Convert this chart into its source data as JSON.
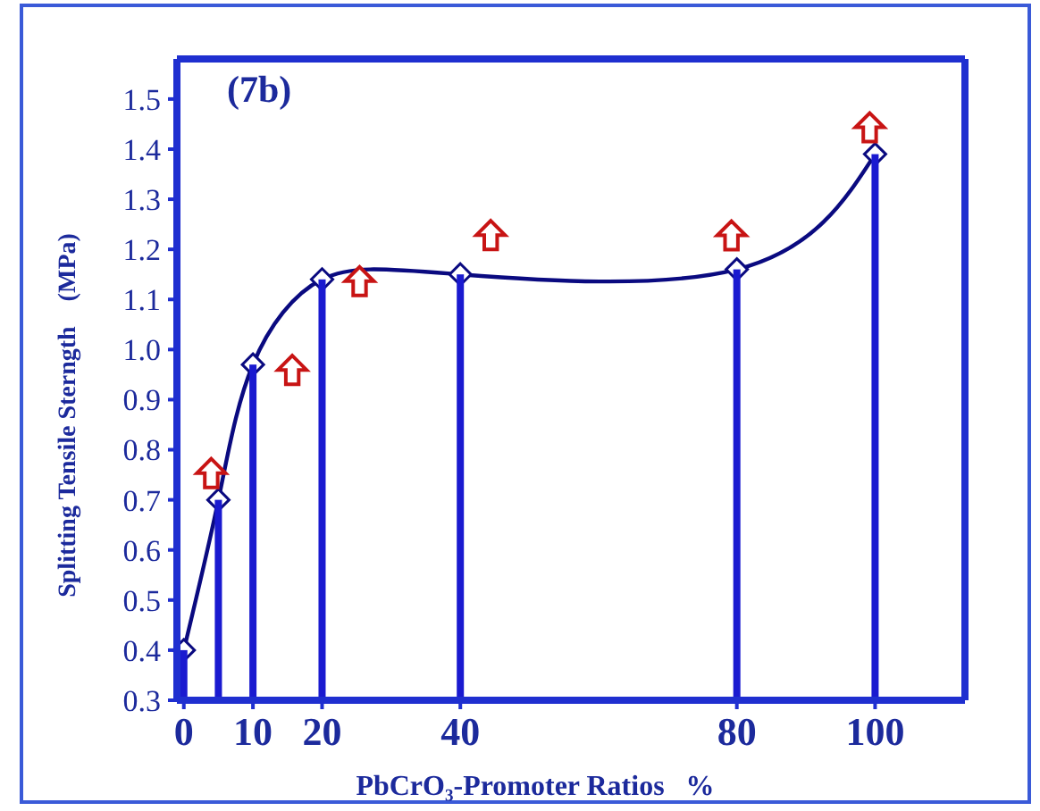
{
  "chart_data": {
    "type": "line",
    "title": "(7b)",
    "xlabel": "PbCrO₃-Promoter Ratios   %",
    "ylabel": "Splitting Tensile Sterngth    (MPa)",
    "x": [
      0,
      5,
      10,
      20,
      40,
      80,
      100
    ],
    "series": [
      {
        "type": "bar",
        "color": "#1a1ad0",
        "values": [
          0.4,
          0.7,
          0.97,
          1.14,
          1.15,
          1.16,
          1.39
        ]
      },
      {
        "color": "#0a0a80",
        "values": [
          0.4,
          0.7,
          0.97,
          1.14,
          1.15,
          1.16,
          1.39
        ]
      }
    ],
    "xlim": [
      -1,
      113
    ],
    "xticks": [
      0,
      10,
      20,
      40,
      80,
      100
    ],
    "ylim": [
      0.3,
      1.58
    ],
    "yticks": [
      {
        "value": 0.3,
        "label": "0.3"
      },
      {
        "value": 0.4,
        "label": "0.4"
      },
      {
        "value": 0.5,
        "label": "0.5"
      },
      {
        "value": 0.6,
        "label": "0.6"
      },
      {
        "value": 0.7,
        "label": "0.7"
      },
      {
        "value": 0.8,
        "label": "0.8"
      },
      {
        "value": 0.9,
        "label": "0.9"
      },
      {
        "value": 1.0,
        "label": "1.0"
      },
      {
        "value": 1.1,
        "label": "1.1"
      },
      {
        "value": 1.2,
        "label": "1.2"
      },
      {
        "value": 1.3,
        "label": "1.3"
      },
      {
        "value": 1.4,
        "label": "1.4"
      },
      {
        "value": 1.5,
        "label": "1.5"
      }
    ],
    "marker": "diamond",
    "grid": false
  }
}
